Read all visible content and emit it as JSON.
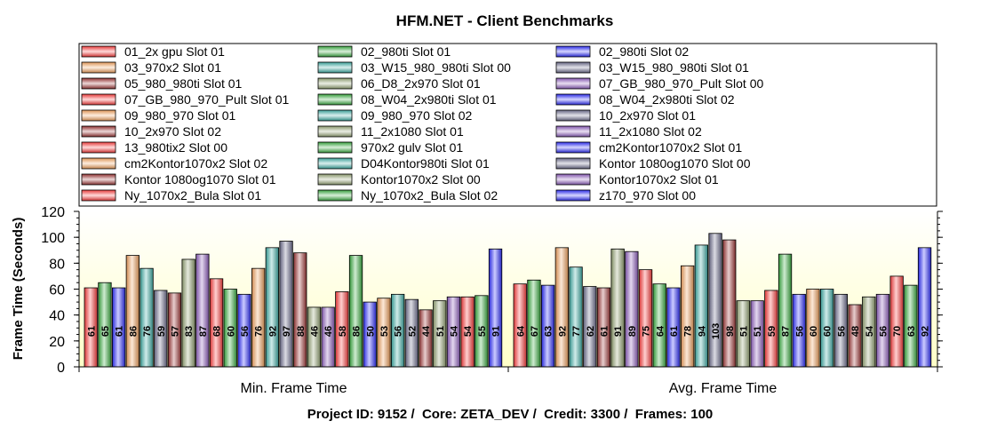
{
  "chart_data": {
    "type": "bar",
    "title": "HFM.NET - Client Benchmarks",
    "subtitle": "Project ID: 9152 /  Core: ZETA_DEV /  Credit: 3300 /  Frames: 100",
    "xlabel": "",
    "ylabel": "Frame Time (Seconds)",
    "ylim": [
      0,
      120
    ],
    "yticks": [
      0,
      20,
      40,
      60,
      80,
      100,
      120
    ],
    "grid": false,
    "legend_position": "top",
    "categories": [
      "Min. Frame Time",
      "Avg. Frame Time"
    ],
    "series": [
      {
        "name": "01_2x gpu Slot 01",
        "color": "#ff4040",
        "values": [
          61,
          64
        ]
      },
      {
        "name": "02_980ti Slot 01",
        "color": "#3cb043",
        "values": [
          65,
          67
        ]
      },
      {
        "name": "02_980ti Slot 02",
        "color": "#3030ff",
        "values": [
          61,
          63
        ]
      },
      {
        "name": "03_970x2 Slot 01",
        "color": "#f4a460",
        "values": [
          86,
          92
        ]
      },
      {
        "name": "03_W15_980_980ti Slot 00",
        "color": "#40b0a8",
        "values": [
          76,
          77
        ]
      },
      {
        "name": "03_W15_980_980ti Slot 01",
        "color": "#707090",
        "values": [
          59,
          62
        ]
      },
      {
        "name": "05_980_980ti Slot 01",
        "color": "#a03838",
        "values": [
          57,
          61
        ]
      },
      {
        "name": "06_D8_2x970 Slot 01",
        "color": "#98a878",
        "values": [
          83,
          91
        ]
      },
      {
        "name": "07_GB_980_970_Pult Slot 00",
        "color": "#9060c0",
        "values": [
          87,
          89
        ]
      },
      {
        "name": "07_GB_980_970_Pult Slot 01",
        "color": "#ff4040",
        "values": [
          68,
          75
        ]
      },
      {
        "name": "08_W04_2x980ti Slot 01",
        "color": "#3cb043",
        "values": [
          60,
          64
        ]
      },
      {
        "name": "08_W04_2x980ti Slot 02",
        "color": "#3030ff",
        "values": [
          56,
          61
        ]
      },
      {
        "name": "09_980_970 Slot 01",
        "color": "#f4a460",
        "values": [
          76,
          78
        ]
      },
      {
        "name": "09_980_970 Slot 02",
        "color": "#40b0a8",
        "values": [
          92,
          94
        ]
      },
      {
        "name": "10_2x970 Slot 01",
        "color": "#707090",
        "values": [
          97,
          103
        ]
      },
      {
        "name": "10_2x970 Slot 02",
        "color": "#a03838",
        "values": [
          88,
          98
        ]
      },
      {
        "name": "11_2x1080 Slot 01",
        "color": "#98a878",
        "values": [
          46,
          51
        ]
      },
      {
        "name": "11_2x1080 Slot 02",
        "color": "#9060c0",
        "values": [
          46,
          51
        ]
      },
      {
        "name": "13_980tix2 Slot 00",
        "color": "#ff4040",
        "values": [
          58,
          59
        ]
      },
      {
        "name": "970x2 gulv Slot 01",
        "color": "#3cb043",
        "values": [
          86,
          87
        ]
      },
      {
        "name": "cm2Kontor1070x2 Slot 01",
        "color": "#3030ff",
        "values": [
          50,
          56
        ]
      },
      {
        "name": "cm2Kontor1070x2 Slot 02",
        "color": "#f4a460",
        "values": [
          53,
          60
        ]
      },
      {
        "name": "D04Kontor980ti Slot 01",
        "color": "#40b0a8",
        "values": [
          56,
          60
        ]
      },
      {
        "name": "Kontor 1080og1070 Slot 00",
        "color": "#707090",
        "values": [
          52,
          56
        ]
      },
      {
        "name": "Kontor 1080og1070 Slot 01",
        "color": "#a03838",
        "values": [
          44,
          48
        ]
      },
      {
        "name": "Kontor1070x2 Slot 00",
        "color": "#98a878",
        "values": [
          51,
          54
        ]
      },
      {
        "name": "Kontor1070x2 Slot 01",
        "color": "#9060c0",
        "values": [
          54,
          56
        ]
      },
      {
        "name": "Ny_1070x2_Bula Slot 01",
        "color": "#ff4040",
        "values": [
          54,
          70
        ]
      },
      {
        "name": "Ny_1070x2_Bula Slot 02",
        "color": "#3cb043",
        "values": [
          55,
          63
        ]
      },
      {
        "name": "z170_970 Slot 00",
        "color": "#3030ff",
        "values": [
          91,
          92
        ]
      }
    ]
  }
}
